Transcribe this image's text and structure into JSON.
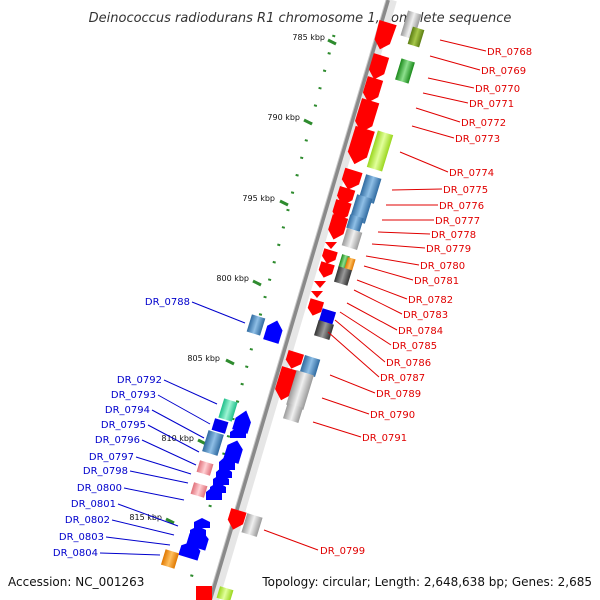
{
  "title": "Deinococcus radiodurans R1 chromosome 1, complete sequence",
  "footer": {
    "accession": "Accession: NC_001263",
    "topology": "Topology: circular; Length: 2,648,638 bp; Genes: 2,685"
  },
  "ticks": [
    "785 kbp",
    "790 kbp",
    "795 kbp",
    "800 kbp",
    "805 kbp",
    "810 kbp",
    "815 kbp"
  ],
  "genes_right": [
    "DR_0768",
    "DR_0769",
    "DR_0770",
    "DR_0771",
    "DR_0772",
    "DR_0773",
    "DR_0774",
    "DR_0775",
    "DR_0776",
    "DR_0777",
    "DR_0778",
    "DR_0779",
    "DR_0780",
    "DR_0781",
    "DR_0782",
    "DR_0783",
    "DR_0784",
    "DR_0785",
    "DR_0786",
    "DR_0787",
    "DR_0789",
    "DR_0790",
    "DR_0791",
    "DR_0799"
  ],
  "genes_left": [
    "DR_0788",
    "DR_0792",
    "DR_0793",
    "DR_0794",
    "DR_0795",
    "DR_0796",
    "DR_0797",
    "DR_0798",
    "DR_0800",
    "DR_0801",
    "DR_0802",
    "DR_0803",
    "DR_0804"
  ],
  "colors": {
    "forward_gene": "#ff0000",
    "reverse_gene": "#0000ff",
    "backbone": "#888888",
    "tick": "#2e8b2e"
  }
}
